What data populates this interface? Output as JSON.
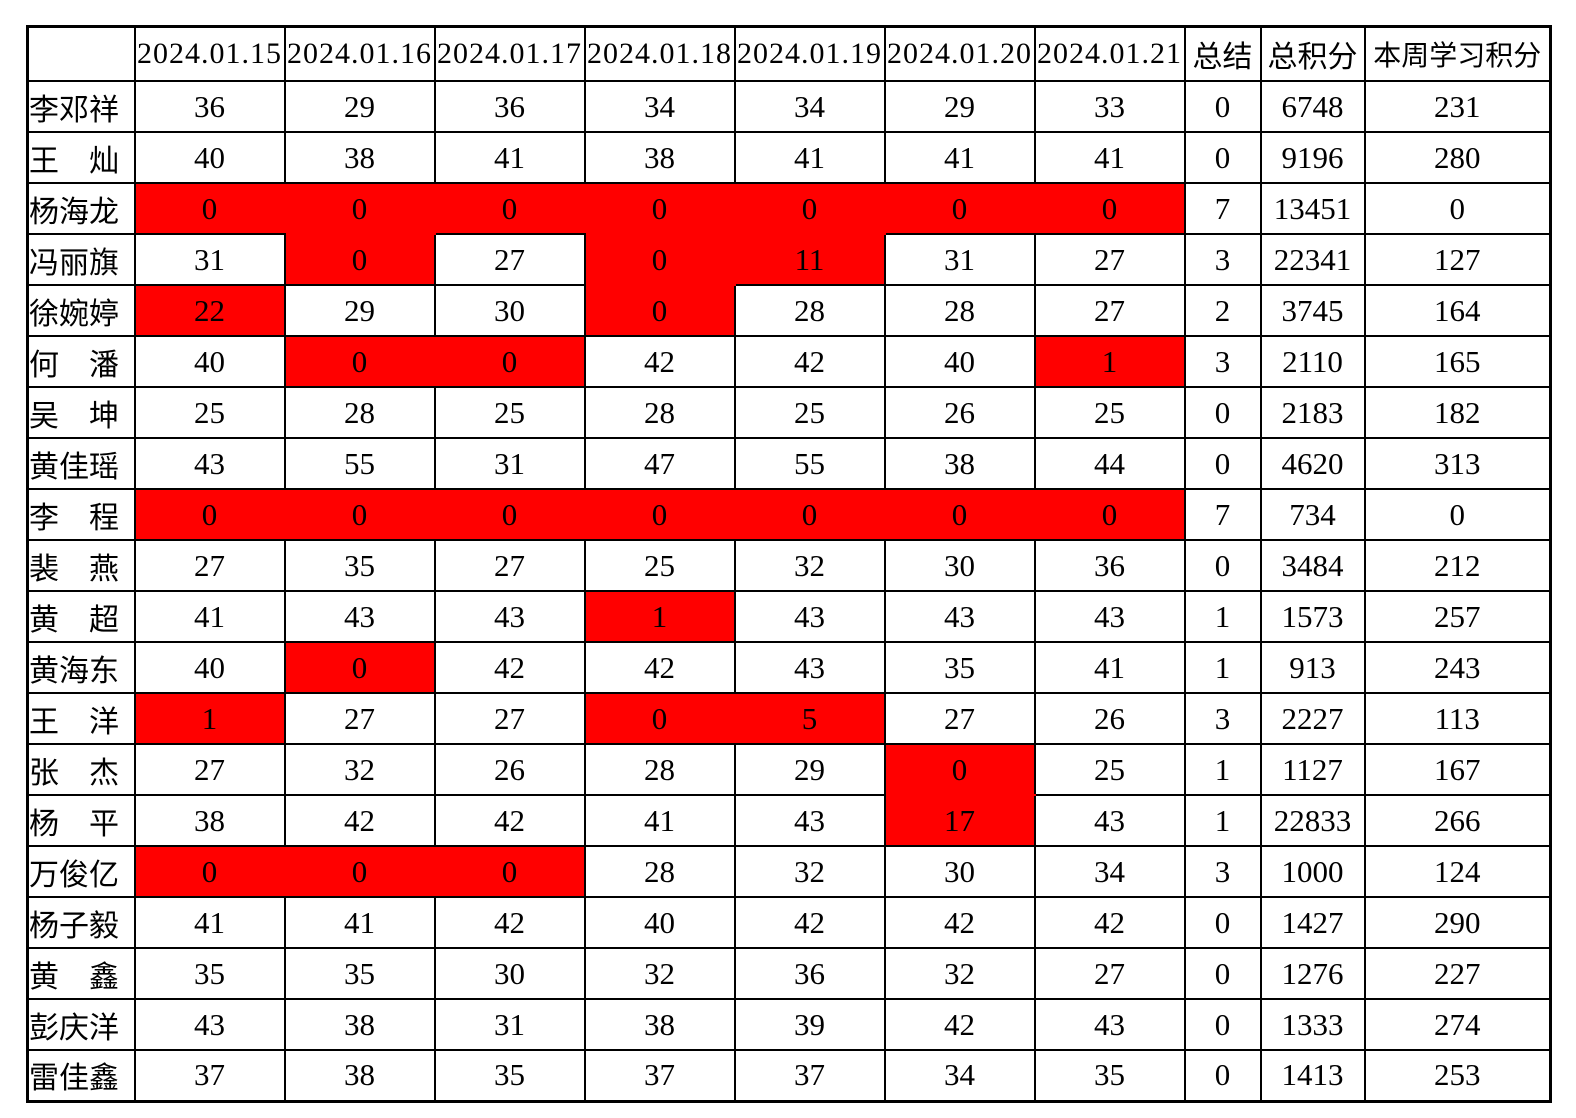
{
  "colors": {
    "highlight_fill": "#ff0000",
    "highlight_text": "#a00000",
    "accent_text": "#ff0000",
    "grid": "#000000"
  },
  "table": {
    "corner_label": "",
    "date_headers": [
      "2024.01.15",
      "2024.01.16",
      "2024.01.17",
      "2024.01.18",
      "2024.01.19",
      "2024.01.20",
      "2024.01.21"
    ],
    "summary_headers": [
      "总结",
      "总积分",
      "本周学习积分"
    ],
    "rows": [
      {
        "name": "李邓祥",
        "days": [
          "36",
          "29",
          "36",
          "34",
          "34",
          "29",
          "33"
        ],
        "red": [],
        "summary": "0",
        "total": "6748",
        "week": "231"
      },
      {
        "name": "王　灿",
        "days": [
          "40",
          "38",
          "41",
          "38",
          "41",
          "41",
          "41"
        ],
        "red": [],
        "summary": "0",
        "total": "9196",
        "week": "280"
      },
      {
        "name": "杨海龙",
        "days": [
          "0",
          "0",
          "0",
          "0",
          "0",
          "0",
          "0"
        ],
        "red": [
          0,
          1,
          2,
          3,
          4,
          5,
          6
        ],
        "summary": "7",
        "total": "13451",
        "week": "0"
      },
      {
        "name": "冯丽旗",
        "days": [
          "31",
          "0",
          "27",
          "0",
          "11",
          "31",
          "27"
        ],
        "red": [
          1,
          3,
          4
        ],
        "summary": "3",
        "total": "22341",
        "week": "127"
      },
      {
        "name": "徐婉婷",
        "days": [
          "22",
          "29",
          "30",
          "0",
          "28",
          "28",
          "27"
        ],
        "red": [
          0,
          3
        ],
        "summary": "2",
        "total": "3745",
        "week": "164"
      },
      {
        "name": "何　潘",
        "days": [
          "40",
          "0",
          "0",
          "42",
          "42",
          "40",
          "1"
        ],
        "red": [
          1,
          2,
          6
        ],
        "summary": "3",
        "total": "2110",
        "week": "165"
      },
      {
        "name": "吴　坤",
        "days": [
          "25",
          "28",
          "25",
          "28",
          "25",
          "26",
          "25"
        ],
        "red": [],
        "summary": "0",
        "total": "2183",
        "week": "182"
      },
      {
        "name": "黄佳瑶",
        "days": [
          "43",
          "55",
          "31",
          "47",
          "55",
          "38",
          "44"
        ],
        "red": [],
        "summary": "0",
        "total": "4620",
        "week": "313"
      },
      {
        "name": "李　程",
        "days": [
          "0",
          "0",
          "0",
          "0",
          "0",
          "0",
          "0"
        ],
        "red": [
          0,
          1,
          2,
          3,
          4,
          5,
          6
        ],
        "summary": "7",
        "total": "734",
        "week": "0"
      },
      {
        "name": "裴　燕",
        "days": [
          "27",
          "35",
          "27",
          "25",
          "32",
          "30",
          "36"
        ],
        "red": [],
        "summary": "0",
        "total": "3484",
        "week": "212"
      },
      {
        "name": "黄　超",
        "days": [
          "41",
          "43",
          "43",
          "1",
          "43",
          "43",
          "43"
        ],
        "red": [
          3
        ],
        "summary": "1",
        "total": "1573",
        "week": "257"
      },
      {
        "name": "黄海东",
        "days": [
          "40",
          "0",
          "42",
          "42",
          "43",
          "35",
          "41"
        ],
        "red": [
          1
        ],
        "summary": "1",
        "total": "913",
        "week": "243"
      },
      {
        "name": "王　洋",
        "days": [
          "1",
          "27",
          "27",
          "0",
          "5",
          "27",
          "26"
        ],
        "red": [
          0,
          3,
          4
        ],
        "summary": "3",
        "total": "2227",
        "week": "113"
      },
      {
        "name": "张　杰",
        "days": [
          "27",
          "32",
          "26",
          "28",
          "29",
          "0",
          "25"
        ],
        "red": [
          5
        ],
        "summary": "1",
        "total": "1127",
        "week": "167"
      },
      {
        "name": "杨　平",
        "days": [
          "38",
          "42",
          "42",
          "41",
          "43",
          "17",
          "43"
        ],
        "red": [
          5
        ],
        "summary": "1",
        "total": "22833",
        "week": "266"
      },
      {
        "name": "万俊亿",
        "days": [
          "0",
          "0",
          "0",
          "28",
          "32",
          "30",
          "34"
        ],
        "red": [
          0,
          1,
          2
        ],
        "summary": "3",
        "total": "1000",
        "week": "124"
      },
      {
        "name": "杨子毅",
        "days": [
          "41",
          "41",
          "42",
          "40",
          "42",
          "42",
          "42"
        ],
        "red": [],
        "summary": "0",
        "total": "1427",
        "week": "290"
      },
      {
        "name": "黄　鑫",
        "days": [
          "35",
          "35",
          "30",
          "32",
          "36",
          "32",
          "27"
        ],
        "red": [],
        "summary": "0",
        "total": "1276",
        "week": "227"
      },
      {
        "name": "彭庆洋",
        "days": [
          "43",
          "38",
          "31",
          "38",
          "39",
          "42",
          "43"
        ],
        "red": [],
        "summary": "0",
        "total": "1333",
        "week": "274"
      },
      {
        "name": "雷佳鑫",
        "days": [
          "37",
          "38",
          "35",
          "37",
          "37",
          "34",
          "35"
        ],
        "red": [],
        "summary": "0",
        "total": "1413",
        "week": "253"
      }
    ]
  }
}
